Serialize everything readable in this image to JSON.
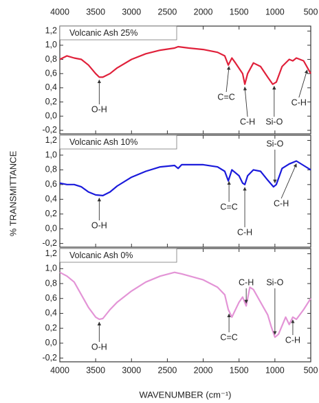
{
  "chart_data": [
    {
      "type": "line",
      "title": "Volcanic Ash 25%",
      "color": "#e0203a",
      "x": [
        4000,
        3900,
        3800,
        3700,
        3600,
        3500,
        3450,
        3400,
        3300,
        3200,
        3000,
        2800,
        2600,
        2400,
        2350,
        2200,
        2000,
        1800,
        1700,
        1650,
        1600,
        1550,
        1450,
        1420,
        1380,
        1300,
        1200,
        1100,
        1030,
        980,
        900,
        800,
        750,
        700,
        600,
        500
      ],
      "values": [
        0.8,
        0.85,
        0.82,
        0.8,
        0.72,
        0.6,
        0.55,
        0.55,
        0.6,
        0.68,
        0.8,
        0.88,
        0.93,
        0.96,
        0.98,
        0.96,
        0.94,
        0.9,
        0.85,
        0.72,
        0.82,
        0.75,
        0.6,
        0.45,
        0.6,
        0.75,
        0.7,
        0.55,
        0.45,
        0.48,
        0.7,
        0.8,
        0.78,
        0.82,
        0.78,
        0.6
      ],
      "xlim": [
        4000,
        500
      ],
      "xticks": [
        4000,
        3500,
        3000,
        2500,
        2000,
        1500,
        1000,
        500
      ],
      "ylim": [
        -0.25,
        1.27
      ],
      "yticks": [
        {
          "value": -0.2,
          "label": "-0,2"
        },
        {
          "value": 0.0,
          "label": "0,0"
        },
        {
          "value": 0.2,
          "label": "0,2"
        },
        {
          "value": 0.4,
          "label": "0,4"
        },
        {
          "value": 0.6,
          "label": "0,6"
        },
        {
          "value": 0.8,
          "label": "0,8"
        },
        {
          "value": 1.0,
          "label": "1,0"
        },
        {
          "value": 1.2,
          "label": "1,2"
        }
      ],
      "annotations": [
        {
          "text": "O-H",
          "x": 3450
        },
        {
          "text": "C=C",
          "x": 1640
        },
        {
          "text": "C-H",
          "x": 1420
        },
        {
          "text": "Si-O",
          "x": 1010
        },
        {
          "text": "C-H",
          "x": 550
        }
      ]
    },
    {
      "type": "line",
      "title": "Volcanic Ash 10%",
      "color": "#1a1adb",
      "ylabel": "% TRANSMITTANCE",
      "x": [
        4000,
        3900,
        3800,
        3700,
        3600,
        3500,
        3400,
        3300,
        3200,
        3000,
        2800,
        2600,
        2400,
        2350,
        2300,
        2000,
        1800,
        1700,
        1650,
        1600,
        1500,
        1450,
        1420,
        1380,
        1300,
        1200,
        1100,
        1020,
        980,
        900,
        800,
        700,
        600,
        500
      ],
      "values": [
        0.62,
        0.6,
        0.6,
        0.57,
        0.5,
        0.46,
        0.45,
        0.5,
        0.58,
        0.7,
        0.78,
        0.84,
        0.86,
        0.82,
        0.87,
        0.87,
        0.84,
        0.78,
        0.65,
        0.8,
        0.72,
        0.62,
        0.6,
        0.72,
        0.8,
        0.78,
        0.66,
        0.57,
        0.6,
        0.82,
        0.88,
        0.92,
        0.86,
        0.8
      ],
      "xlim": [
        4000,
        500
      ],
      "xticks": [
        4000,
        3500,
        3000,
        2500,
        2000,
        1500,
        1000,
        500
      ],
      "ylim": [
        -0.25,
        1.27
      ],
      "yticks": [
        {
          "value": -0.2,
          "label": "-0,2"
        },
        {
          "value": 0.0,
          "label": "0,0"
        },
        {
          "value": 0.2,
          "label": "0,2"
        },
        {
          "value": 0.4,
          "label": "0,4"
        },
        {
          "value": 0.6,
          "label": "0,6"
        },
        {
          "value": 0.8,
          "label": "0,8"
        },
        {
          "value": 1.0,
          "label": "1,0"
        },
        {
          "value": 1.2,
          "label": "1,2"
        }
      ],
      "annotations": [
        {
          "text": "O-H",
          "x": 3450
        },
        {
          "text": "C=C",
          "x": 1640
        },
        {
          "text": "C-H",
          "x": 1420
        },
        {
          "text": "Si-O",
          "x": 1000
        },
        {
          "text": "C-H",
          "x": 700
        }
      ]
    },
    {
      "type": "line",
      "title": "Volcanic Ash 0%",
      "color": "#e394d6",
      "xlabel": "WAVENUMBER (cm⁻¹)",
      "x": [
        4000,
        3900,
        3800,
        3700,
        3600,
        3500,
        3450,
        3400,
        3300,
        3200,
        3000,
        2800,
        2600,
        2400,
        2300,
        2000,
        1800,
        1700,
        1650,
        1600,
        1500,
        1450,
        1400,
        1350,
        1300,
        1200,
        1100,
        1050,
        1000,
        950,
        850,
        800,
        750,
        700,
        600,
        500
      ],
      "values": [
        0.95,
        0.9,
        0.82,
        0.65,
        0.48,
        0.35,
        0.32,
        0.33,
        0.45,
        0.55,
        0.7,
        0.82,
        0.9,
        0.95,
        0.93,
        0.85,
        0.75,
        0.65,
        0.45,
        0.35,
        0.55,
        0.62,
        0.5,
        0.75,
        0.72,
        0.55,
        0.38,
        0.22,
        0.08,
        0.12,
        0.35,
        0.25,
        0.35,
        0.32,
        0.45,
        0.6
      ],
      "xlim": [
        4000,
        500
      ],
      "xticks": [
        4000,
        3500,
        3000,
        2500,
        2000,
        1500,
        1000,
        500
      ],
      "ylim": [
        -0.25,
        1.27
      ],
      "yticks": [
        {
          "value": -0.2,
          "label": "-0,2"
        },
        {
          "value": 0.0,
          "label": "0,0"
        },
        {
          "value": 0.2,
          "label": "0,2"
        },
        {
          "value": 0.4,
          "label": "0,4"
        },
        {
          "value": 0.6,
          "label": "0,6"
        },
        {
          "value": 0.8,
          "label": "0,8"
        },
        {
          "value": 1.0,
          "label": "1,0"
        },
        {
          "value": 1.2,
          "label": "1,2"
        }
      ],
      "annotations": [
        {
          "text": "O-H",
          "x": 3450
        },
        {
          "text": "C=C",
          "x": 1640
        },
        {
          "text": "C-H",
          "x": 1400
        },
        {
          "text": "Si-O",
          "x": 1000
        },
        {
          "text": "C-H",
          "x": 750
        }
      ]
    }
  ]
}
